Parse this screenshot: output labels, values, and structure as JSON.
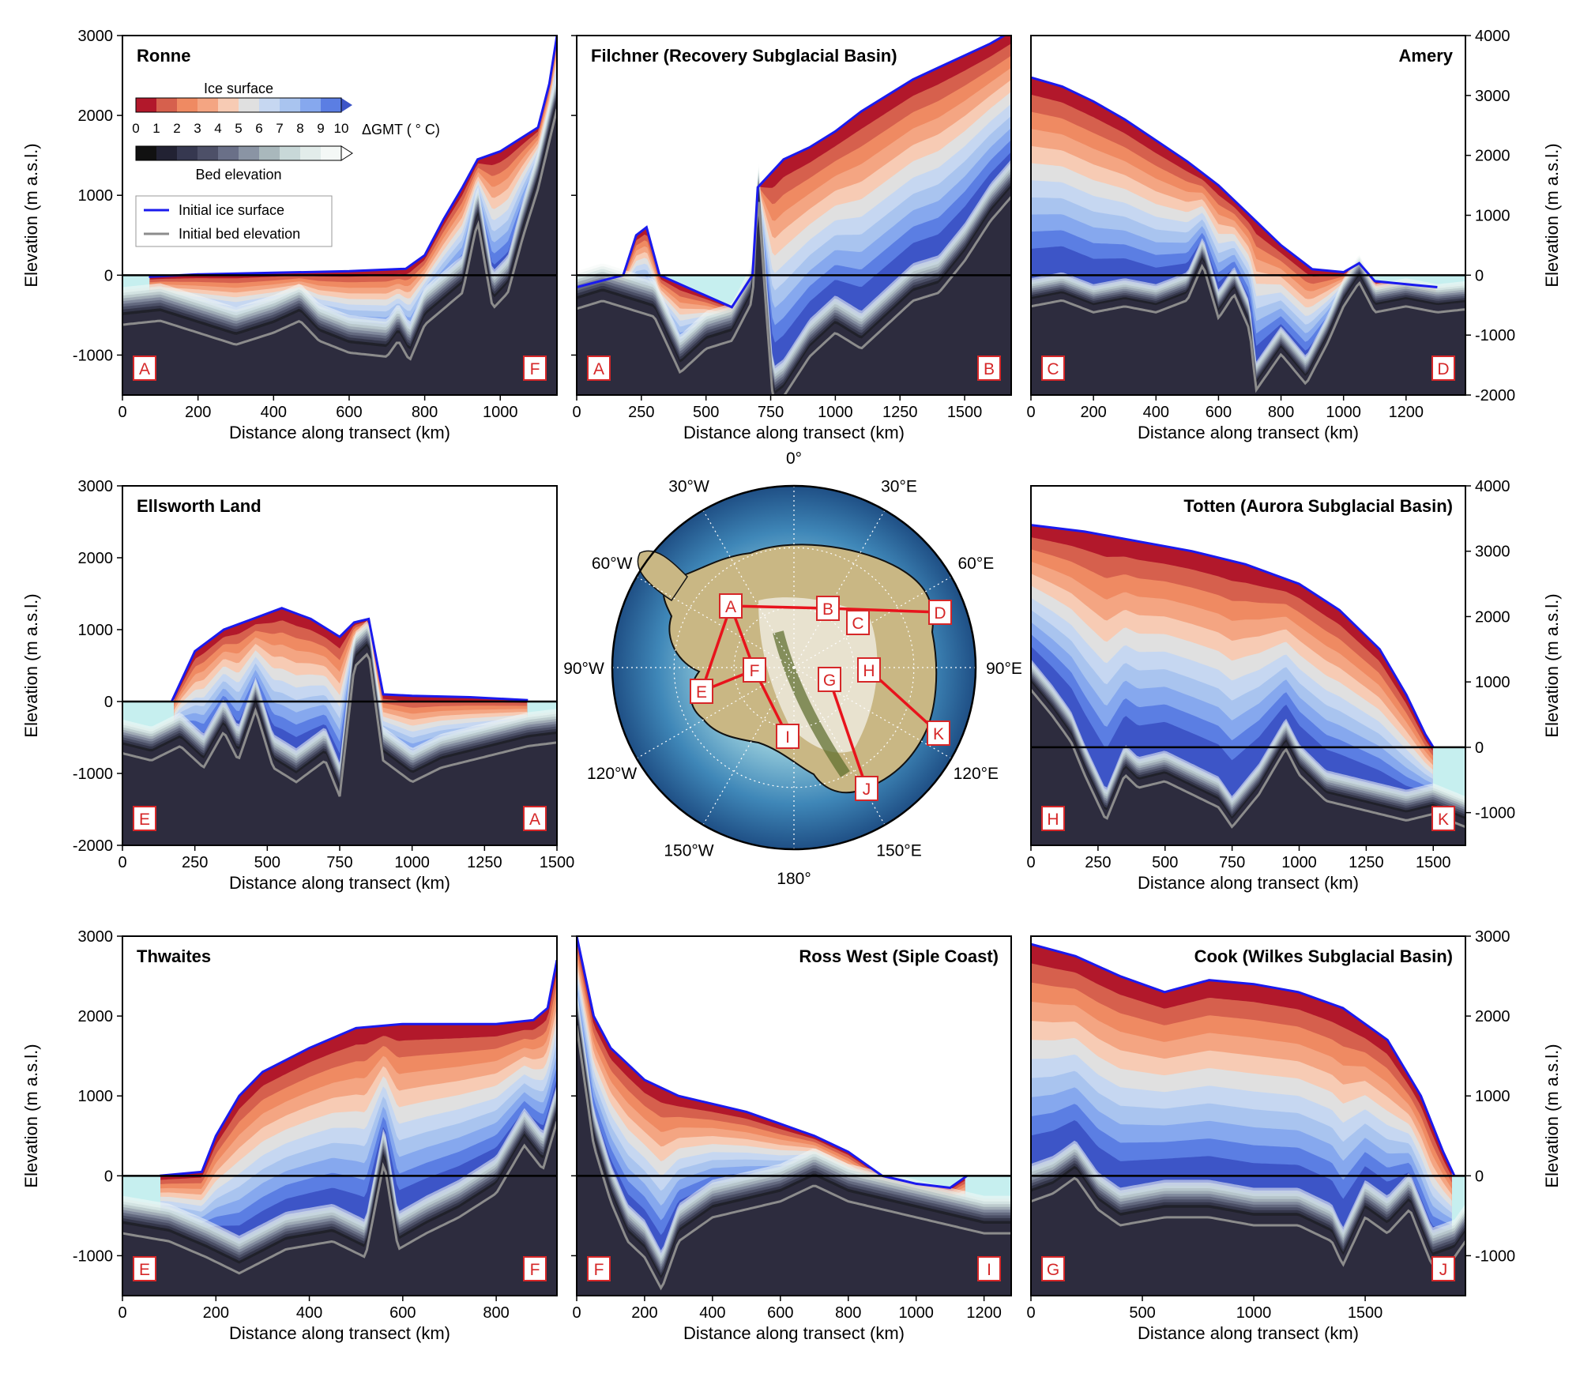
{
  "colors": {
    "ocean": "#c6efef",
    "bed_dark": "#2d2c3e",
    "ice_warm": [
      "#b2182b",
      "#d6604d",
      "#ef8a62",
      "#f4a582",
      "#f7cbb4",
      "#e0e0e0",
      "#c6d7f1",
      "#a9c4ef",
      "#86a8ee",
      "#5b7ee3",
      "#3d55c7"
    ],
    "bed_cool": [
      "#111111",
      "#222233",
      "#363850",
      "#4d5068",
      "#6a7088",
      "#8a94a4",
      "#a9b8bc",
      "#c8d8d8",
      "#e2ecea",
      "#f4f8f6"
    ],
    "initial_surface": "#1a1aee",
    "initial_bed": "#8c8c8c",
    "label_red": "#d62728"
  },
  "legend": {
    "surface_title": "Ice surface",
    "bed_title": "Bed elevation",
    "gmt_label": "ΔGMT ( ° C)",
    "ticks": [
      "0",
      "1",
      "2",
      "3",
      "4",
      "5",
      "6",
      "7",
      "8",
      "9",
      "10"
    ],
    "line1": "Initial ice surface",
    "line2": "Initial bed elevation"
  },
  "map": {
    "labels": [
      "0°",
      "30°E",
      "60°E",
      "90°E",
      "120°E",
      "150°E",
      "180°",
      "150°W",
      "120°W",
      "90°W",
      "60°W",
      "30°W"
    ],
    "points": [
      "A",
      "B",
      "C",
      "D",
      "E",
      "F",
      "G",
      "H",
      "I",
      "J",
      "K"
    ]
  },
  "chart_data": [
    {
      "type": "area",
      "title": "Ronne",
      "xlabel": "Distance along transect (km)",
      "ylabel": "Elevation (m a.s.l.)",
      "xlim": [
        0,
        1150
      ],
      "ylim": [
        -1500,
        3000
      ],
      "xticks": [
        0,
        200,
        400,
        600,
        800,
        1000
      ],
      "yticks": [
        -1000,
        0,
        1000,
        2000,
        3000
      ],
      "start": "A",
      "end": "F",
      "surface": [
        [
          70,
          -20
        ],
        [
          200,
          10
        ],
        [
          400,
          30
        ],
        [
          600,
          50
        ],
        [
          750,
          80
        ],
        [
          800,
          250
        ],
        [
          850,
          700
        ],
        [
          900,
          1100
        ],
        [
          940,
          1450
        ],
        [
          1000,
          1550
        ],
        [
          1050,
          1700
        ],
        [
          1100,
          1850
        ],
        [
          1130,
          2400
        ],
        [
          1150,
          3000
        ]
      ],
      "bed": [
        [
          0,
          -500
        ],
        [
          100,
          -450
        ],
        [
          200,
          -600
        ],
        [
          300,
          -750
        ],
        [
          400,
          -600
        ],
        [
          470,
          -450
        ],
        [
          520,
          -700
        ],
        [
          600,
          -850
        ],
        [
          700,
          -900
        ],
        [
          730,
          -700
        ],
        [
          760,
          -950
        ],
        [
          800,
          -500
        ],
        [
          850,
          -300
        ],
        [
          900,
          -100
        ],
        [
          940,
          800
        ],
        [
          980,
          -300
        ],
        [
          1020,
          -100
        ],
        [
          1060,
          600
        ],
        [
          1100,
          1200
        ],
        [
          1150,
          2200
        ]
      ]
    },
    {
      "type": "area",
      "title": "Filchner (Recovery Subglacial Basin)",
      "xlabel": "Distance along transect (km)",
      "ylabel": "",
      "xlim": [
        0,
        1680
      ],
      "ylim": [
        -1500,
        3000
      ],
      "xticks": [
        0,
        250,
        500,
        750,
        1000,
        1250,
        1500
      ],
      "yticks": [],
      "start": "A",
      "end": "B",
      "surface": [
        [
          0,
          -150
        ],
        [
          180,
          0
        ],
        [
          230,
          500
        ],
        [
          270,
          600
        ],
        [
          320,
          0
        ],
        [
          600,
          -400
        ],
        [
          680,
          0
        ],
        [
          700,
          1100
        ],
        [
          800,
          1450
        ],
        [
          900,
          1600
        ],
        [
          1000,
          1800
        ],
        [
          1100,
          2050
        ],
        [
          1200,
          2250
        ],
        [
          1300,
          2450
        ],
        [
          1400,
          2600
        ],
        [
          1500,
          2750
        ],
        [
          1600,
          2900
        ],
        [
          1680,
          3050
        ]
      ],
      "bed": [
        [
          0,
          -300
        ],
        [
          100,
          -200
        ],
        [
          200,
          -300
        ],
        [
          300,
          -400
        ],
        [
          400,
          -1100
        ],
        [
          500,
          -800
        ],
        [
          600,
          -700
        ],
        [
          680,
          -200
        ],
        [
          700,
          1200
        ],
        [
          730,
          -200
        ],
        [
          760,
          -1500
        ],
        [
          800,
          -1400
        ],
        [
          900,
          -900
        ],
        [
          1000,
          -600
        ],
        [
          1100,
          -800
        ],
        [
          1200,
          -500
        ],
        [
          1300,
          -200
        ],
        [
          1400,
          -100
        ],
        [
          1500,
          300
        ],
        [
          1600,
          800
        ],
        [
          1680,
          1100
        ]
      ]
    },
    {
      "type": "area",
      "title": "Amery",
      "xlabel": "Distance along transect (km)",
      "ylabel": "Elevation (m a.s.l.)",
      "xlim": [
        0,
        1390
      ],
      "ylim": [
        -2000,
        4000
      ],
      "xticks": [
        0,
        200,
        400,
        600,
        800,
        1000,
        1200
      ],
      "yticks": [
        -2000,
        -1000,
        0,
        1000,
        2000,
        3000,
        4000
      ],
      "start": "C",
      "end": "D",
      "surface": [
        [
          0,
          3300
        ],
        [
          100,
          3150
        ],
        [
          200,
          2900
        ],
        [
          300,
          2600
        ],
        [
          400,
          2250
        ],
        [
          500,
          1900
        ],
        [
          600,
          1500
        ],
        [
          700,
          1000
        ],
        [
          800,
          500
        ],
        [
          900,
          100
        ],
        [
          1000,
          50
        ],
        [
          1050,
          200
        ],
        [
          1100,
          -100
        ],
        [
          1200,
          -150
        ],
        [
          1300,
          -200
        ]
      ],
      "bed": [
        [
          0,
          -400
        ],
        [
          100,
          -300
        ],
        [
          200,
          -500
        ],
        [
          300,
          -400
        ],
        [
          400,
          -500
        ],
        [
          500,
          -300
        ],
        [
          550,
          300
        ],
        [
          600,
          -600
        ],
        [
          650,
          -200
        ],
        [
          700,
          -800
        ],
        [
          720,
          -1800
        ],
        [
          800,
          -1200
        ],
        [
          880,
          -1700
        ],
        [
          950,
          -1000
        ],
        [
          1000,
          -400
        ],
        [
          1050,
          0
        ],
        [
          1100,
          -500
        ],
        [
          1200,
          -400
        ],
        [
          1300,
          -500
        ],
        [
          1390,
          -450
        ]
      ]
    },
    {
      "type": "area",
      "title": "Ellsworth Land",
      "xlabel": "Distance along transect (km)",
      "ylabel": "Elevation (m a.s.l.)",
      "xlim": [
        0,
        1500
      ],
      "ylim": [
        -2000,
        3000
      ],
      "xticks": [
        0,
        250,
        500,
        750,
        1000,
        1250,
        1500
      ],
      "yticks": [
        -2000,
        -1000,
        0,
        1000,
        2000,
        3000
      ],
      "start": "E",
      "end": "A",
      "surface": [
        [
          170,
          0
        ],
        [
          250,
          700
        ],
        [
          350,
          1000
        ],
        [
          450,
          1150
        ],
        [
          550,
          1300
        ],
        [
          650,
          1150
        ],
        [
          750,
          900
        ],
        [
          800,
          1100
        ],
        [
          850,
          1150
        ],
        [
          900,
          100
        ],
        [
          1000,
          80
        ],
        [
          1200,
          60
        ],
        [
          1400,
          20
        ]
      ],
      "bed": [
        [
          0,
          -600
        ],
        [
          100,
          -700
        ],
        [
          200,
          -500
        ],
        [
          280,
          -800
        ],
        [
          350,
          -300
        ],
        [
          400,
          -700
        ],
        [
          460,
          0
        ],
        [
          520,
          -800
        ],
        [
          600,
          -1000
        ],
        [
          700,
          -700
        ],
        [
          750,
          -1200
        ],
        [
          800,
          600
        ],
        [
          850,
          800
        ],
        [
          900,
          -700
        ],
        [
          1000,
          -1000
        ],
        [
          1100,
          -800
        ],
        [
          1200,
          -700
        ],
        [
          1300,
          -600
        ],
        [
          1400,
          -500
        ],
        [
          1500,
          -450
        ]
      ]
    },
    {
      "type": "area",
      "title": "Totten (Aurora Subglacial Basin)",
      "xlabel": "Distance along transect (km)",
      "ylabel": "Elevation (m a.s.l.)",
      "xlim": [
        0,
        1620
      ],
      "ylim": [
        -1500,
        4000
      ],
      "xticks": [
        0,
        250,
        500,
        750,
        1000,
        1250,
        1500
      ],
      "yticks": [
        -1000,
        0,
        1000,
        2000,
        3000,
        4000
      ],
      "start": "H",
      "end": "K",
      "surface": [
        [
          0,
          3400
        ],
        [
          200,
          3300
        ],
        [
          400,
          3150
        ],
        [
          600,
          3000
        ],
        [
          800,
          2800
        ],
        [
          1000,
          2500
        ],
        [
          1150,
          2100
        ],
        [
          1300,
          1500
        ],
        [
          1400,
          800
        ],
        [
          1470,
          200
        ],
        [
          1500,
          0
        ]
      ],
      "bed": [
        [
          0,
          1000
        ],
        [
          80,
          600
        ],
        [
          150,
          200
        ],
        [
          200,
          -300
        ],
        [
          280,
          -1000
        ],
        [
          350,
          -300
        ],
        [
          400,
          -500
        ],
        [
          500,
          -400
        ],
        [
          600,
          -600
        ],
        [
          700,
          -800
        ],
        [
          750,
          -1100
        ],
        [
          850,
          -600
        ],
        [
          950,
          100
        ],
        [
          1000,
          -300
        ],
        [
          1100,
          -700
        ],
        [
          1200,
          -800
        ],
        [
          1300,
          -900
        ],
        [
          1400,
          -1000
        ],
        [
          1500,
          -900
        ],
        [
          1620,
          -1100
        ]
      ]
    },
    {
      "type": "area",
      "title": "Thwaites",
      "xlabel": "Distance along transect (km)",
      "ylabel": "Elevation (m a.s.l.)",
      "xlim": [
        0,
        930
      ],
      "ylim": [
        -1500,
        3000
      ],
      "xticks": [
        0,
        200,
        400,
        600,
        800
      ],
      "yticks": [
        -1000,
        0,
        1000,
        2000,
        3000
      ],
      "start": "E",
      "end": "F",
      "surface": [
        [
          80,
          0
        ],
        [
          170,
          50
        ],
        [
          200,
          500
        ],
        [
          250,
          1000
        ],
        [
          300,
          1300
        ],
        [
          400,
          1600
        ],
        [
          500,
          1850
        ],
        [
          600,
          1900
        ],
        [
          700,
          1900
        ],
        [
          800,
          1900
        ],
        [
          880,
          1950
        ],
        [
          910,
          2100
        ],
        [
          930,
          2700
        ]
      ],
      "bed": [
        [
          0,
          -600
        ],
        [
          100,
          -700
        ],
        [
          180,
          -900
        ],
        [
          250,
          -1100
        ],
        [
          350,
          -800
        ],
        [
          450,
          -700
        ],
        [
          520,
          -900
        ],
        [
          560,
          300
        ],
        [
          590,
          -800
        ],
        [
          650,
          -600
        ],
        [
          720,
          -400
        ],
        [
          800,
          -100
        ],
        [
          860,
          500
        ],
        [
          900,
          200
        ],
        [
          930,
          800
        ]
      ]
    },
    {
      "type": "area",
      "title": "Ross West (Siple Coast)",
      "xlabel": "Distance along transect (km)",
      "ylabel": "",
      "xlim": [
        0,
        1280
      ],
      "ylim": [
        -1500,
        3000
      ],
      "xticks": [
        0,
        200,
        400,
        600,
        800,
        1000,
        1200
      ],
      "yticks": [],
      "start": "F",
      "end": "I",
      "surface": [
        [
          0,
          3000
        ],
        [
          50,
          2000
        ],
        [
          100,
          1600
        ],
        [
          200,
          1200
        ],
        [
          300,
          1000
        ],
        [
          400,
          900
        ],
        [
          500,
          800
        ],
        [
          600,
          650
        ],
        [
          700,
          500
        ],
        [
          800,
          300
        ],
        [
          850,
          150
        ],
        [
          900,
          0
        ],
        [
          1000,
          -100
        ],
        [
          1100,
          -150
        ],
        [
          1150,
          0
        ]
      ],
      "bed": [
        [
          0,
          2000
        ],
        [
          50,
          500
        ],
        [
          100,
          -200
        ],
        [
          150,
          -700
        ],
        [
          200,
          -900
        ],
        [
          250,
          -1300
        ],
        [
          300,
          -700
        ],
        [
          400,
          -400
        ],
        [
          500,
          -300
        ],
        [
          600,
          -200
        ],
        [
          700,
          0
        ],
        [
          800,
          -200
        ],
        [
          900,
          -300
        ],
        [
          1000,
          -400
        ],
        [
          1100,
          -500
        ],
        [
          1200,
          -600
        ],
        [
          1280,
          -600
        ]
      ]
    },
    {
      "type": "area",
      "title": "Cook (Wilkes Subglacial Basin)",
      "xlabel": "Distance along transect (km)",
      "ylabel": "Elevation (m a.s.l.)",
      "xlim": [
        0,
        1950
      ],
      "ylim": [
        -1500,
        3000
      ],
      "xticks": [
        0,
        500,
        1000,
        1500
      ],
      "yticks": [
        -1000,
        0,
        1000,
        2000,
        3000
      ],
      "start": "G",
      "end": "J",
      "surface": [
        [
          0,
          2900
        ],
        [
          200,
          2750
        ],
        [
          400,
          2500
        ],
        [
          600,
          2300
        ],
        [
          800,
          2450
        ],
        [
          1000,
          2400
        ],
        [
          1200,
          2300
        ],
        [
          1400,
          2100
        ],
        [
          1600,
          1700
        ],
        [
          1750,
          1000
        ],
        [
          1850,
          300
        ],
        [
          1900,
          0
        ]
      ],
      "bed": [
        [
          0,
          -200
        ],
        [
          100,
          -100
        ],
        [
          200,
          100
        ],
        [
          300,
          -300
        ],
        [
          400,
          -500
        ],
        [
          600,
          -400
        ],
        [
          800,
          -400
        ],
        [
          1000,
          -500
        ],
        [
          1200,
          -500
        ],
        [
          1350,
          -700
        ],
        [
          1400,
          -1000
        ],
        [
          1500,
          -400
        ],
        [
          1600,
          -600
        ],
        [
          1700,
          -300
        ],
        [
          1800,
          -1000
        ],
        [
          1900,
          -900
        ],
        [
          1950,
          -700
        ]
      ]
    }
  ]
}
